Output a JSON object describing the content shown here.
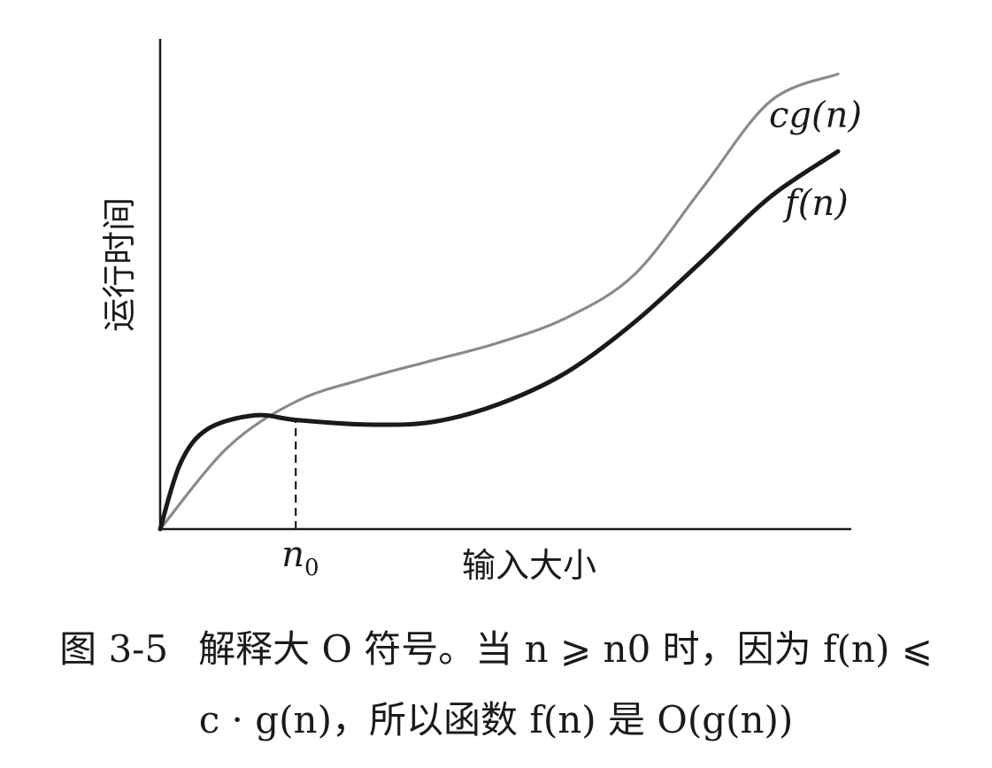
{
  "chart_data": {
    "type": "line",
    "xlabel": "输入大小",
    "ylabel": "运行时间",
    "x_tick_label": "n0",
    "series": [
      {
        "name": "cg(n)",
        "color": "#8a8a8a",
        "points": [
          [
            0,
            0
          ],
          [
            0.5,
            0.36
          ],
          [
            1.0,
            0.56
          ],
          [
            1.5,
            0.66
          ],
          [
            2.0,
            0.74
          ],
          [
            2.5,
            0.82
          ],
          [
            3.0,
            0.93
          ],
          [
            3.5,
            1.12
          ],
          [
            4.0,
            1.5
          ],
          [
            4.5,
            1.88
          ],
          [
            5.0,
            2.0
          ]
        ]
      },
      {
        "name": "f(n)",
        "color": "#1a1a1a",
        "points": [
          [
            0,
            0
          ],
          [
            0.15,
            0.29
          ],
          [
            0.35,
            0.44
          ],
          [
            0.7,
            0.5
          ],
          [
            1.0,
            0.48
          ],
          [
            1.5,
            0.46
          ],
          [
            2.0,
            0.47
          ],
          [
            2.5,
            0.55
          ],
          [
            3.0,
            0.69
          ],
          [
            3.5,
            0.91
          ],
          [
            4.0,
            1.18
          ],
          [
            4.5,
            1.46
          ],
          [
            5.0,
            1.66
          ]
        ]
      }
    ],
    "n0_x": 1.0,
    "xlim": [
      0,
      5
    ],
    "ylim": [
      0,
      2.1
    ],
    "grid": false,
    "legend": "inline labels at right end of each curve"
  },
  "caption": {
    "figure_number": "图 3-5",
    "line1": "解释大 O 符号。当 n ⩾ n0 时，因为 f(n) ⩽",
    "line2": "c · g(n)，所以函数 f(n) 是 O(g(n))"
  }
}
